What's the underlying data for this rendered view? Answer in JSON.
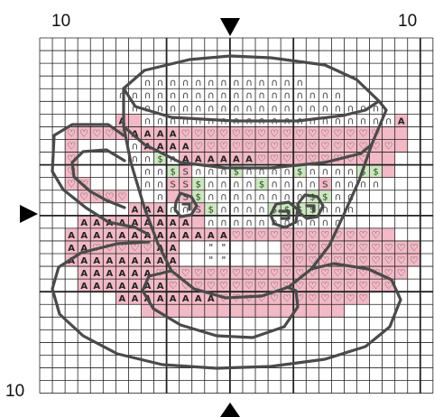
{
  "labels": {
    "top_left": "10",
    "top_right": "10",
    "bottom_left": "10"
  },
  "colors": {
    "background": "#ffffff",
    "grid_line": "#222222",
    "pink_fill": "#f2b9c6",
    "green_fill": "#cfe6c2",
    "outline": "#4a4a4a",
    "arrow": "#000000",
    "heart_symbol": "#333333",
    "arch_symbol": "#444444",
    "a_symbol": "#222222",
    "dollar_symbol": "#1f4d1f",
    "s_symbol": "#333333"
  },
  "symbols": {
    "heart": "♡",
    "arch": "∩",
    "a": "A",
    "dollar": "$",
    "s": "S",
    "tick": "\""
  },
  "icons": [
    "center-arrow-top",
    "center-arrow-left",
    "center-arrow-bottom"
  ]
}
